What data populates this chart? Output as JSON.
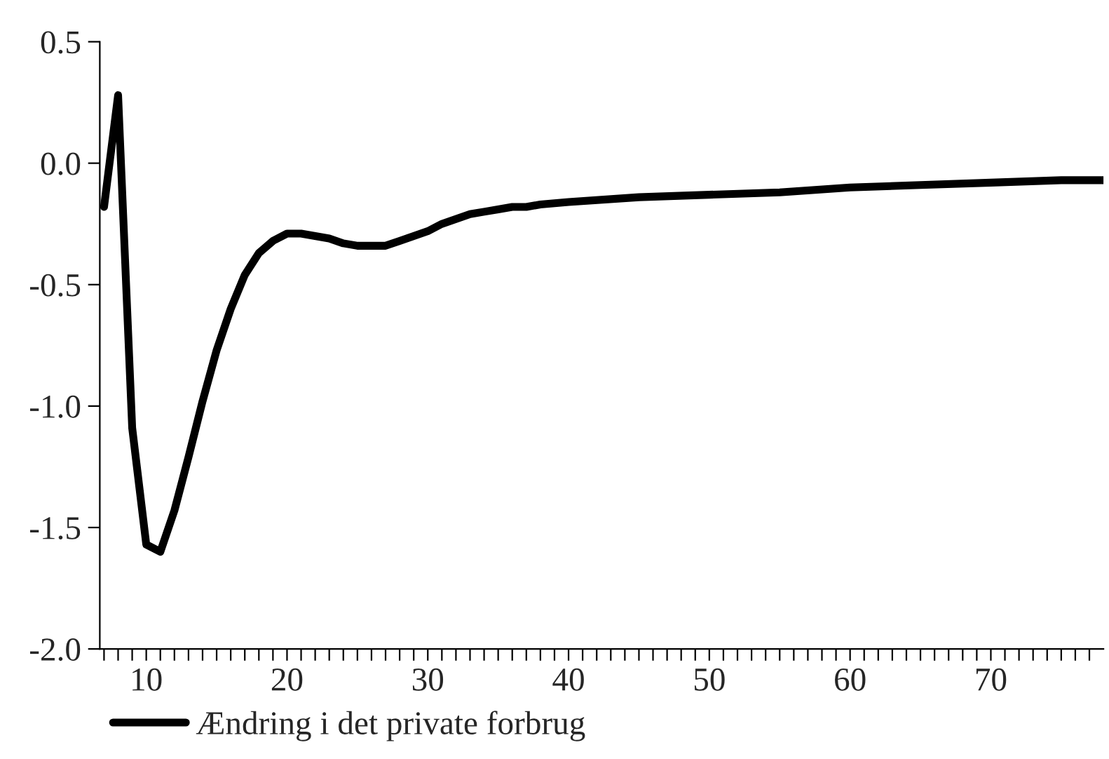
{
  "chart_data": {
    "type": "line",
    "legend": "bottom left",
    "marker": "none",
    "line_style": "solid",
    "grid": false,
    "xlim": [
      6.7,
      78
    ],
    "xticks": [
      {
        "value": 7,
        "label": null
      },
      {
        "value": 8,
        "label": null
      },
      {
        "value": 9,
        "label": null
      },
      10,
      {
        "value": 11,
        "label": null
      },
      {
        "value": 12,
        "label": null
      },
      {
        "value": 13,
        "label": null
      },
      {
        "value": 14,
        "label": null
      },
      {
        "value": 15,
        "label": null
      },
      {
        "value": 16,
        "label": null
      },
      {
        "value": 17,
        "label": null
      },
      {
        "value": 18,
        "label": null
      },
      {
        "value": 19,
        "label": null
      },
      20,
      {
        "value": 21,
        "label": null
      },
      {
        "value": 22,
        "label": null
      },
      {
        "value": 23,
        "label": null
      },
      {
        "value": 24,
        "label": null
      },
      {
        "value": 25,
        "label": null
      },
      {
        "value": 26,
        "label": null
      },
      {
        "value": 27,
        "label": null
      },
      {
        "value": 28,
        "label": null
      },
      {
        "value": 29,
        "label": null
      },
      30,
      {
        "value": 31,
        "label": null
      },
      {
        "value": 32,
        "label": null
      },
      {
        "value": 33,
        "label": null
      },
      {
        "value": 34,
        "label": null
      },
      {
        "value": 35,
        "label": null
      },
      {
        "value": 36,
        "label": null
      },
      {
        "value": 37,
        "label": null
      },
      {
        "value": 38,
        "label": null
      },
      {
        "value": 39,
        "label": null
      },
      40,
      {
        "value": 41,
        "label": null
      },
      {
        "value": 42,
        "label": null
      },
      {
        "value": 43,
        "label": null
      },
      {
        "value": 44,
        "label": null
      },
      {
        "value": 45,
        "label": null
      },
      {
        "value": 46,
        "label": null
      },
      {
        "value": 47,
        "label": null
      },
      {
        "value": 48,
        "label": null
      },
      {
        "value": 49,
        "label": null
      },
      50,
      {
        "value": 51,
        "label": null
      },
      {
        "value": 52,
        "label": null
      },
      {
        "value": 53,
        "label": null
      },
      {
        "value": 54,
        "label": null
      },
      {
        "value": 55,
        "label": null
      },
      {
        "value": 56,
        "label": null
      },
      {
        "value": 57,
        "label": null
      },
      {
        "value": 58,
        "label": null
      },
      {
        "value": 59,
        "label": null
      },
      60,
      {
        "value": 61,
        "label": null
      },
      {
        "value": 62,
        "label": null
      },
      {
        "value": 63,
        "label": null
      },
      {
        "value": 64,
        "label": null
      },
      {
        "value": 65,
        "label": null
      },
      {
        "value": 66,
        "label": null
      },
      {
        "value": 67,
        "label": null
      },
      {
        "value": 68,
        "label": null
      },
      {
        "value": 69,
        "label": null
      },
      70,
      {
        "value": 71,
        "label": null
      },
      {
        "value": 72,
        "label": null
      },
      {
        "value": 73,
        "label": null
      },
      {
        "value": 74,
        "label": null
      },
      {
        "value": 75,
        "label": null
      },
      {
        "value": 76,
        "label": null
      },
      {
        "value": 77,
        "label": null
      }
    ],
    "ylim": [
      -2.0,
      0.5
    ],
    "yticks": [
      {
        "value": -2.0,
        "label": "-2.0"
      },
      {
        "value": -1.5,
        "label": "-1.5"
      },
      {
        "value": -1.0,
        "label": "-1.0"
      },
      {
        "value": -0.5,
        "label": "-0.5"
      },
      {
        "value": 0.0,
        "label": "0.0"
      },
      {
        "value": 0.5,
        "label": "0.5"
      }
    ],
    "series": [
      {
        "name": "Ændring i det private forbrug",
        "color": "#000000",
        "x": [
          7,
          8,
          9,
          10,
          11,
          12,
          13,
          14,
          15,
          16,
          17,
          18,
          19,
          20,
          21,
          22,
          23,
          24,
          25,
          26,
          27,
          28,
          29,
          30,
          31,
          32,
          33,
          34,
          35,
          36,
          37,
          38,
          40,
          45,
          50,
          55,
          60,
          65,
          70,
          75,
          78
        ],
        "values": [
          -0.18,
          0.28,
          -1.09,
          -1.57,
          -1.6,
          -1.43,
          -1.21,
          -0.98,
          -0.77,
          -0.6,
          -0.46,
          -0.37,
          -0.32,
          -0.29,
          -0.29,
          -0.3,
          -0.31,
          -0.33,
          -0.34,
          -0.34,
          -0.34,
          -0.32,
          -0.3,
          -0.28,
          -0.25,
          -0.23,
          -0.21,
          -0.2,
          -0.19,
          -0.18,
          -0.18,
          -0.17,
          -0.16,
          -0.14,
          -0.13,
          -0.12,
          -0.1,
          -0.09,
          -0.08,
          -0.07,
          -0.07
        ]
      }
    ]
  }
}
